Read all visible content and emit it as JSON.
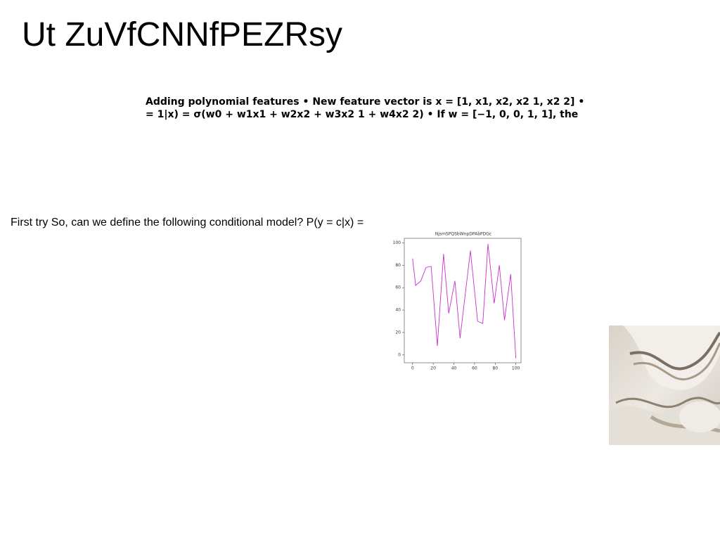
{
  "title": "Ut ZuVfCNNfPEZRsy",
  "text_block": {
    "lines": [
      "Adding polynomial features • New feature vector is x = [1, x1, x2, x2 1, x2 2] •",
      "= 1|x) = σ(w0 + w1x1 + w2x2 + w3x2 1 + w4x2 2) • If w = [−1, 0, 0, 1, 1], the"
    ]
  },
  "caption": "First try So, can we define the following conditional model? P(y = c|x) =",
  "chart_data": {
    "type": "line",
    "title": "NjsmSPQSbWnpDPAbPDGc",
    "x": [
      0,
      3,
      8,
      13,
      18,
      24,
      30,
      35,
      41,
      46,
      56,
      63,
      68,
      73,
      79,
      84,
      89,
      95,
      100
    ],
    "series": [
      {
        "color": "#c832c8",
        "values": [
          86,
          62,
          66,
          78,
          79,
          8,
          90,
          37,
          66,
          15,
          93,
          30,
          28,
          99,
          46,
          80,
          31,
          72,
          -3
        ]
      }
    ],
    "xlim": [
      -8,
      105
    ],
    "xticks": [
      0,
      20,
      40,
      60,
      80,
      100
    ],
    "ylim": [
      -7,
      104
    ],
    "yticks": [
      0,
      20,
      40,
      60,
      80,
      100
    ]
  }
}
